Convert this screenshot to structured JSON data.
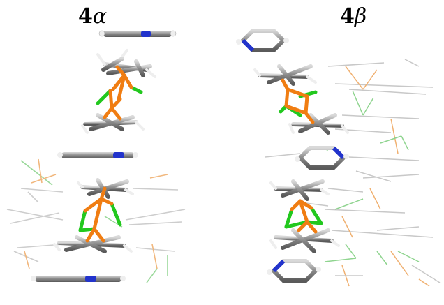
{
  "panels": [
    {
      "id": "alpha",
      "number": "4",
      "greek": "α"
    },
    {
      "id": "beta",
      "number": "4",
      "greek": "β"
    }
  ],
  "colors": {
    "carbon": "#8e8e8e",
    "carbon_light": "#c9c9c9",
    "hydrogen": "#f2f2f2",
    "nitrogen": "#1f2fd6",
    "iron": "#f07d12",
    "chlorine": "#22c81e",
    "faint": "#bdbdbd",
    "faint_green": "#86d486",
    "faint_orange": "#f0b070"
  }
}
